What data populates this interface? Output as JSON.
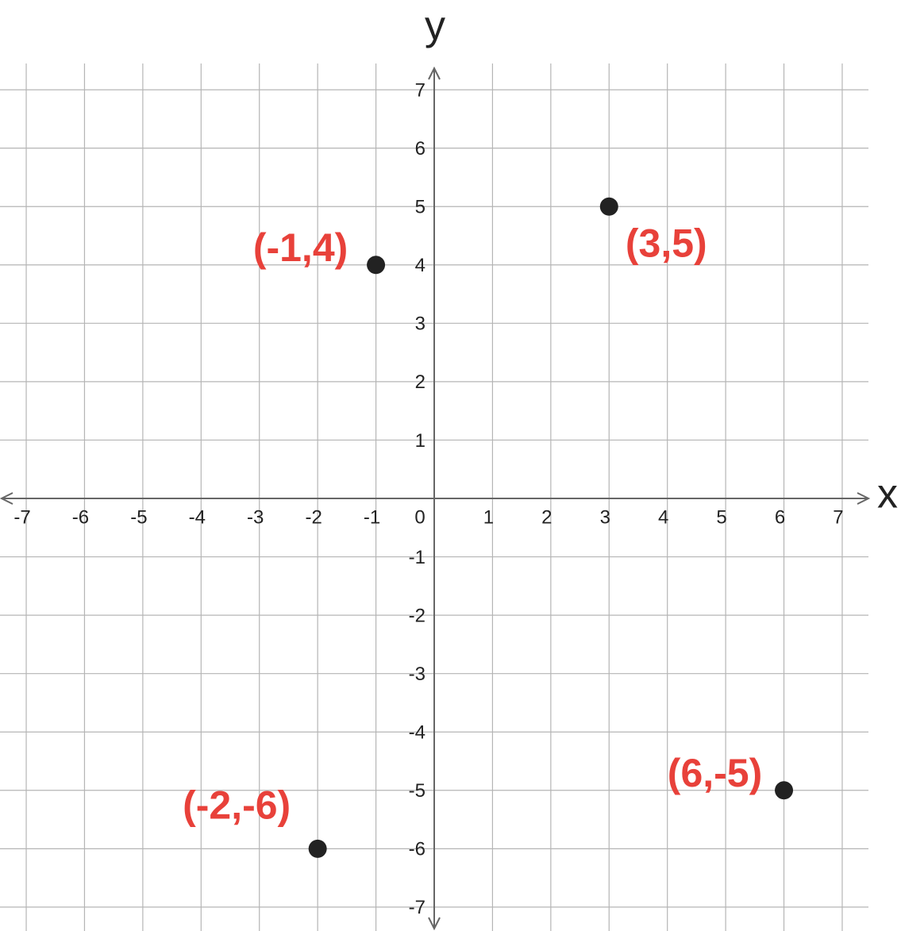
{
  "chart_data": {
    "type": "scatter",
    "x_label": "x",
    "y_label": "y",
    "xlim": [
      -7.45,
      7.45
    ],
    "ylim": [
      -7.45,
      7.45
    ],
    "xticks": [
      -7,
      -6,
      -5,
      -4,
      -3,
      -2,
      -1,
      0,
      1,
      2,
      3,
      4,
      5,
      6,
      7
    ],
    "yticks": [
      -7,
      -6,
      -5,
      -4,
      -3,
      -2,
      -1,
      1,
      2,
      3,
      4,
      5,
      6,
      7
    ],
    "grid": true,
    "series": [
      {
        "color": "#222222",
        "label_color": "#e8413a",
        "x": [
          -1,
          3,
          6,
          -2
        ],
        "values": [
          4,
          5,
          -5,
          -6
        ],
        "labels": [
          "(-1,4)",
          "(3,5)",
          "(6,-5)",
          "(-2,-6)"
        ]
      }
    ]
  }
}
